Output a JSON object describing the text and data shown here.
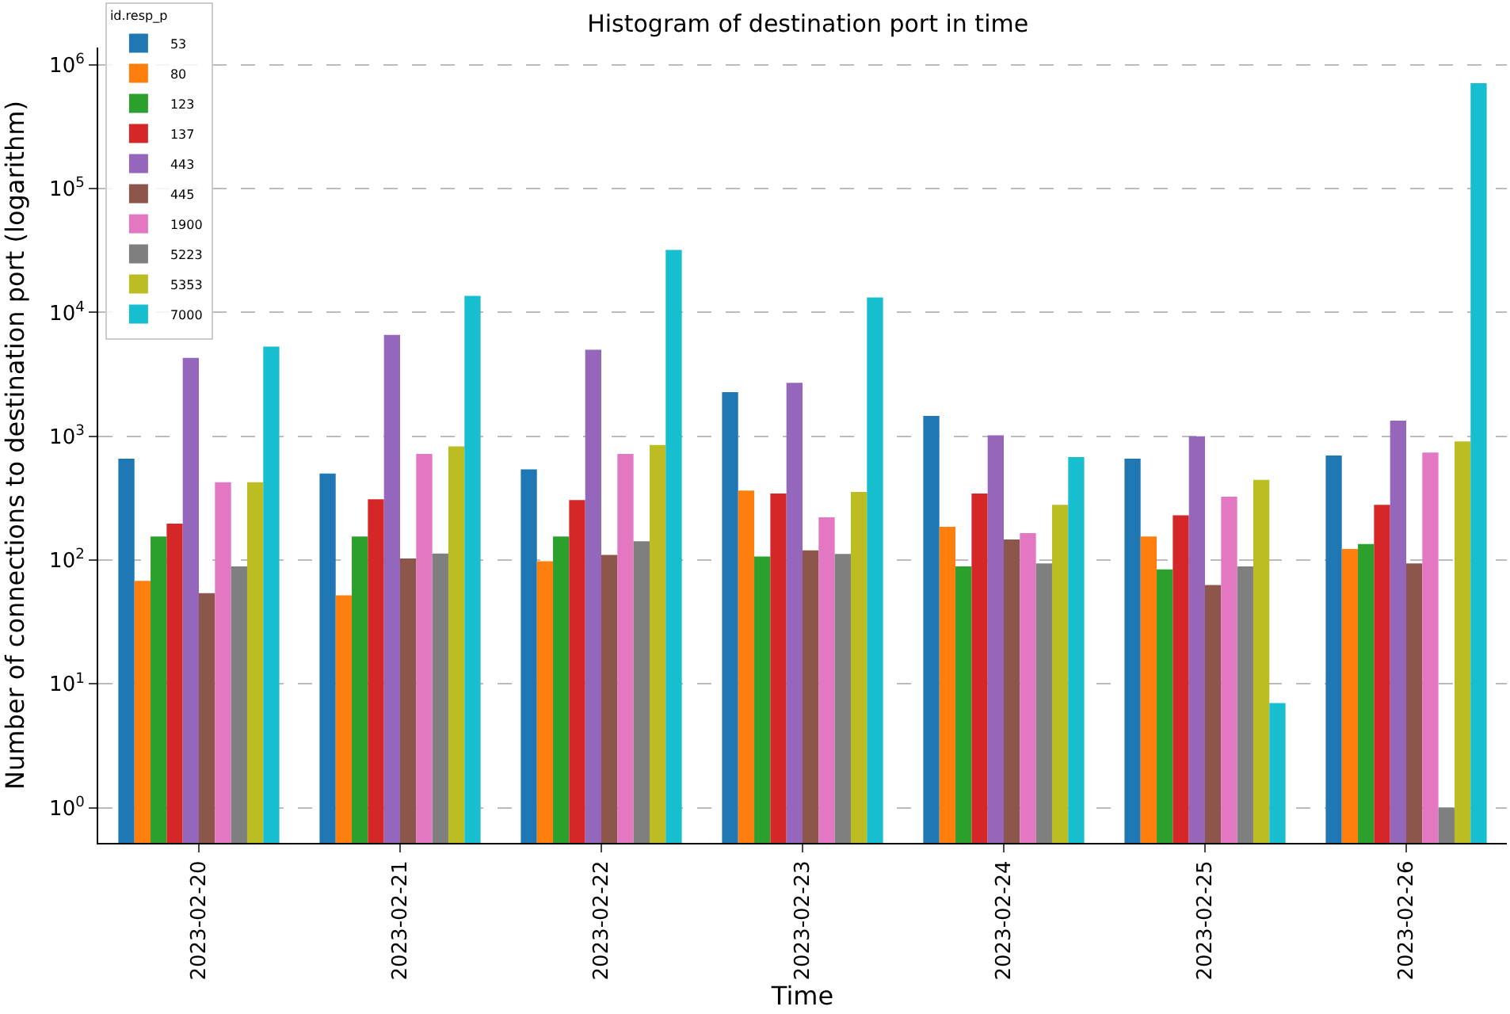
{
  "chart_data": {
    "type": "bar",
    "title": "Histogram of destination port in time",
    "xlabel": "Time",
    "ylabel": "Number of connections to destination port (logarithm)",
    "legend_title": "id.resp_p",
    "categories": [
      "2023-02-20",
      "2023-02-21",
      "2023-02-22",
      "2023-02-23",
      "2023-02-24",
      "2023-02-25",
      "2023-02-26"
    ],
    "series": [
      {
        "name": "53",
        "color": "#1f77b4",
        "values": [
          660,
          500,
          540,
          2270,
          1460,
          660,
          700
        ]
      },
      {
        "name": "80",
        "color": "#ff7f0e",
        "values": [
          68,
          52,
          98,
          365,
          186,
          155,
          123
        ]
      },
      {
        "name": "123",
        "color": "#2ca02c",
        "values": [
          155,
          155,
          155,
          107,
          89,
          84,
          135
        ]
      },
      {
        "name": "137",
        "color": "#d62728",
        "values": [
          197,
          310,
          305,
          345,
          345,
          230,
          280
        ]
      },
      {
        "name": "443",
        "color": "#9467bd",
        "values": [
          4300,
          6600,
          5000,
          2700,
          1020,
          1000,
          1340
        ]
      },
      {
        "name": "445",
        "color": "#8c564b",
        "values": [
          54,
          103,
          110,
          120,
          147,
          63,
          94
        ]
      },
      {
        "name": "1900",
        "color": "#e377c2",
        "values": [
          425,
          720,
          720,
          222,
          165,
          325,
          740
        ]
      },
      {
        "name": "5223",
        "color": "#7f7f7f",
        "values": [
          89,
          113,
          142,
          112,
          94,
          89,
          1
        ]
      },
      {
        "name": "5353",
        "color": "#bcbd22",
        "values": [
          425,
          830,
          850,
          355,
          280,
          445,
          910
        ]
      },
      {
        "name": "7000",
        "color": "#17becf",
        "values": [
          5300,
          13600,
          32000,
          13200,
          680,
          7,
          710000
        ]
      }
    ],
    "log": "y",
    "ylim": [
      0.52,
      1380000
    ],
    "yticks": [
      {
        "value": 1,
        "label": "10$^{0}$"
      },
      {
        "value": 10,
        "label": "10$^{1}$"
      },
      {
        "value": 100,
        "label": "10$^{2}$"
      },
      {
        "value": 1000,
        "label": "10$^{3}$"
      },
      {
        "value": 10000,
        "label": "10$^{4}$"
      },
      {
        "value": 100000,
        "label": "10$^{5}$"
      },
      {
        "value": 1000000,
        "label": "10$^{6}$"
      }
    ],
    "grid": "y",
    "legend": "top left"
  }
}
